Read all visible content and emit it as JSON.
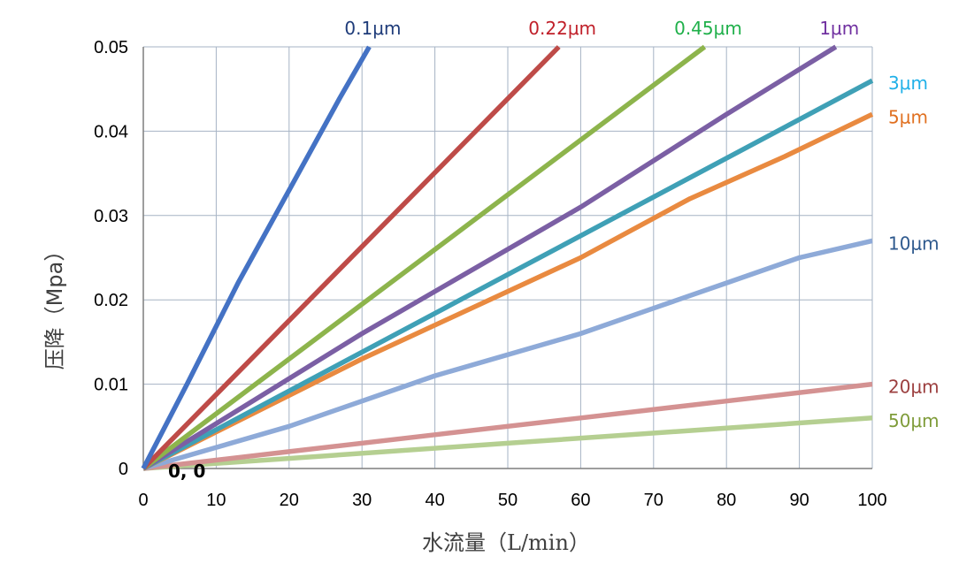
{
  "chart_data": {
    "type": "line",
    "xlabel": "水流量（L/min）",
    "ylabel": "压降（Mpa）",
    "xlim": [
      0,
      100
    ],
    "ylim": [
      0,
      0.05
    ],
    "x_ticks": [
      "0",
      "10",
      "20",
      "30",
      "40",
      "50",
      "60",
      "70",
      "80",
      "90",
      "100"
    ],
    "y_ticks": [
      "0",
      "0.01",
      "0.02",
      "0.03",
      "0.04",
      "0.05"
    ],
    "grid": true,
    "origin_annotation": "0, 0",
    "series": [
      {
        "name": "0.1μm",
        "color": "#4472c4",
        "points": [
          [
            0,
            0
          ],
          [
            6,
            0.01
          ],
          [
            13,
            0.022
          ],
          [
            20,
            0.033
          ],
          [
            27,
            0.044
          ],
          [
            31,
            0.05
          ]
        ]
      },
      {
        "name": "0.22μm",
        "color": "#be4b48",
        "points": [
          [
            0,
            0
          ],
          [
            57,
            0.05
          ]
        ]
      },
      {
        "name": "0.45μm",
        "color": "#8db44c",
        "points": [
          [
            0,
            0
          ],
          [
            77,
            0.05
          ]
        ]
      },
      {
        "name": "1μm",
        "color": "#7b5fa4",
        "points": [
          [
            0,
            0
          ],
          [
            30,
            0.016
          ],
          [
            60,
            0.031
          ],
          [
            80,
            0.042
          ],
          [
            95,
            0.05
          ]
        ]
      },
      {
        "name": "3μm",
        "color": "#3fa0b6",
        "points": [
          [
            0,
            0
          ],
          [
            50,
            0.023
          ],
          [
            100,
            0.046
          ]
        ]
      },
      {
        "name": "5μm",
        "color": "#e98a40",
        "points": [
          [
            0,
            0
          ],
          [
            30,
            0.013
          ],
          [
            60,
            0.025
          ],
          [
            75,
            0.032
          ],
          [
            88,
            0.037
          ],
          [
            100,
            0.042
          ]
        ]
      },
      {
        "name": "10μm",
        "color": "#8eaad8",
        "points": [
          [
            0,
            0
          ],
          [
            20,
            0.005
          ],
          [
            40,
            0.011
          ],
          [
            60,
            0.016
          ],
          [
            70,
            0.019
          ],
          [
            80,
            0.022
          ],
          [
            90,
            0.025
          ],
          [
            100,
            0.027
          ]
        ]
      },
      {
        "name": "20μm",
        "color": "#d49292",
        "points": [
          [
            0,
            0
          ],
          [
            20,
            0.002
          ],
          [
            40,
            0.004
          ],
          [
            60,
            0.006
          ],
          [
            80,
            0.008
          ],
          [
            100,
            0.01
          ]
        ]
      },
      {
        "name": "50μm",
        "color": "#b5cf91",
        "points": [
          [
            0,
            0
          ],
          [
            25,
            0.0015
          ],
          [
            50,
            0.003
          ],
          [
            75,
            0.0045
          ],
          [
            100,
            0.006
          ]
        ]
      }
    ],
    "label_colors": [
      "#1f3c7a",
      "#c0202a",
      "#1fb04a",
      "#7030a0",
      "#1fb0e8",
      "#e07020",
      "#2f5a8e",
      "#9c3f3f",
      "#7f9c3a"
    ]
  }
}
